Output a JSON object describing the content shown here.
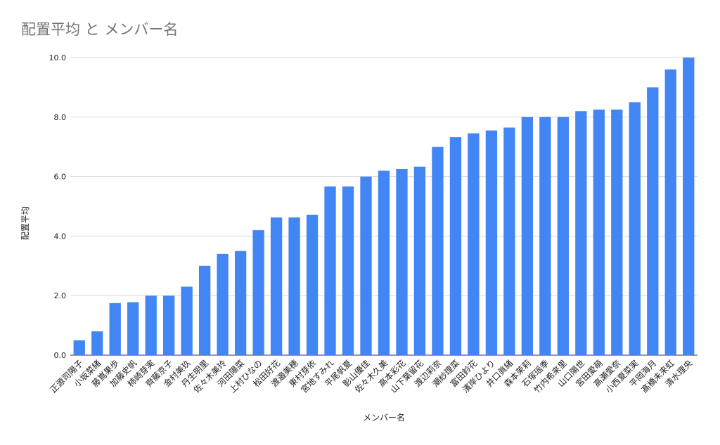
{
  "chart_data": {
    "type": "bar",
    "title": "配置平均 と メンバー名",
    "xlabel": "メンバー名",
    "ylabel": "配置平均",
    "ylim": [
      0,
      10
    ],
    "yticks": [
      "0.0",
      "2.0",
      "4.0",
      "6.0",
      "8.0",
      "10.0"
    ],
    "grid": true,
    "bar_color": "#4285f4",
    "categories": [
      "正源司陽子",
      "小坂菜緒",
      "藤嶌果歩",
      "加藤史帆",
      "柿崎芽実",
      "齊藤京子",
      "金村美玖",
      "丹生明里",
      "佐々木美玲",
      "河田陽菜",
      "上村ひなの",
      "松田好花",
      "渡邉美穂",
      "東村芽依",
      "宮地すみれ",
      "平尾帆夏",
      "影山優佳",
      "佐々木久美",
      "高本彩花",
      "山下葉留花",
      "渡辺莉奈",
      "潮紗理菜",
      "富田鈴花",
      "濱岸ひより",
      "井口眞緒",
      "森本茉莉",
      "石塚瑶季",
      "竹内希来里",
      "山口陽世",
      "宮田愛萌",
      "高瀬愛奈",
      "小西夏菜実",
      "平岡海月",
      "髙橋未来虹",
      "清水理央"
    ],
    "values": [
      0.5,
      0.8,
      1.75,
      1.78,
      2.0,
      2.0,
      2.3,
      3.0,
      3.4,
      3.5,
      4.2,
      4.63,
      4.63,
      4.72,
      5.67,
      5.67,
      6.0,
      6.2,
      6.25,
      6.33,
      7.0,
      7.33,
      7.45,
      7.55,
      7.65,
      8.0,
      8.0,
      8.0,
      8.2,
      8.25,
      8.25,
      8.5,
      9.0,
      9.6,
      10.0
    ]
  }
}
